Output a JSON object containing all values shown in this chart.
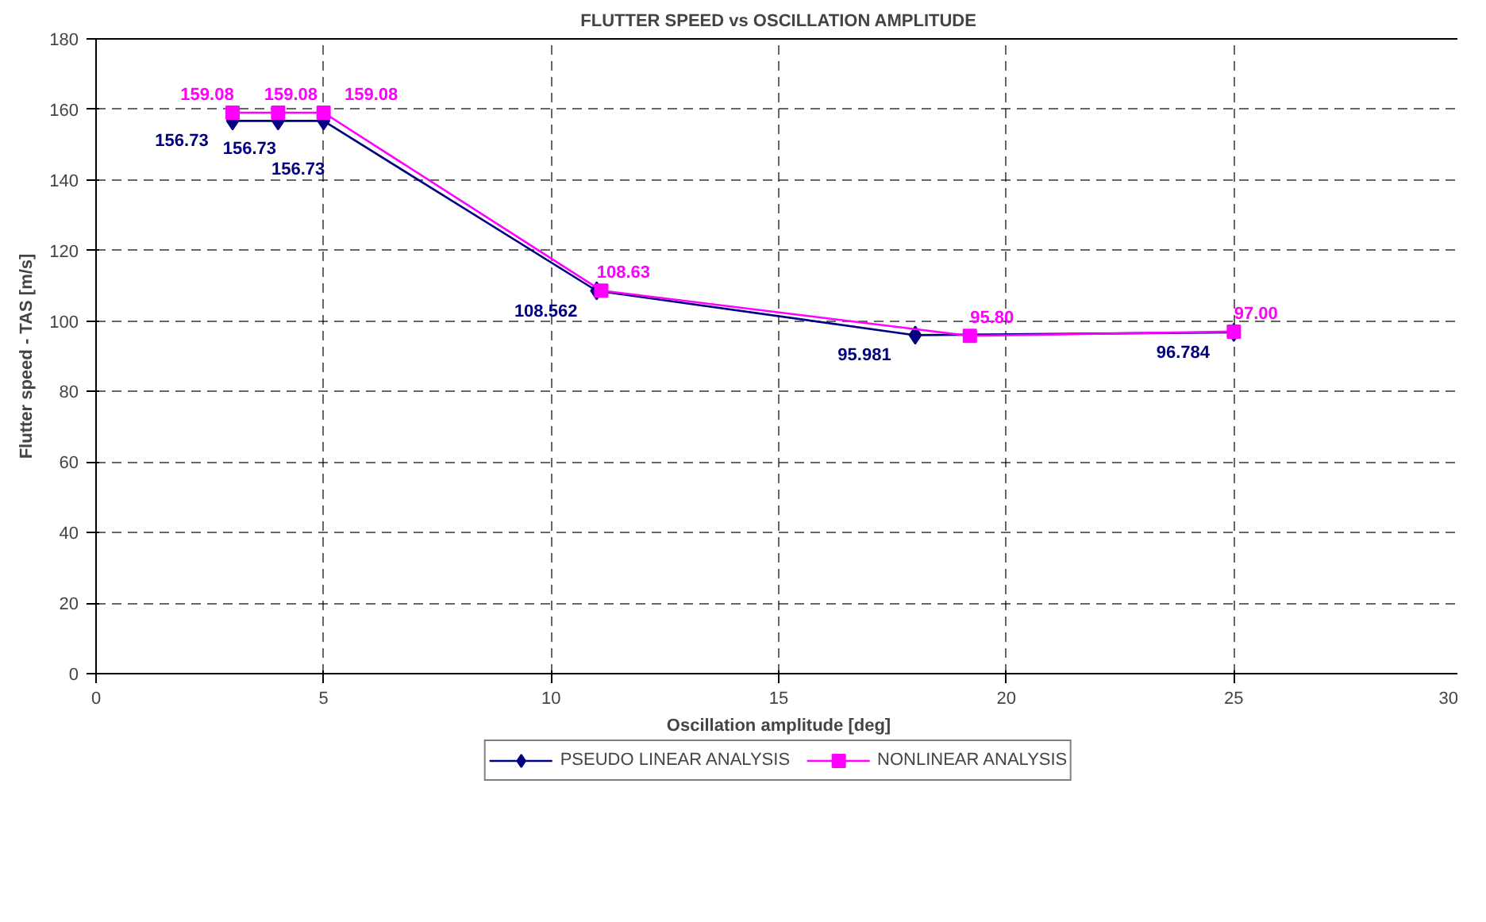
{
  "chart_data": {
    "type": "line",
    "title": "FLUTTER SPEED vs OSCILLATION AMPLITUDE",
    "xlabel": "Oscillation amplitude [deg]",
    "ylabel": "Flutter speed - TAS [m/s]",
    "xlim": [
      0,
      30
    ],
    "xticks": [
      0,
      5,
      10,
      15,
      20,
      25,
      30
    ],
    "ylim": [
      0,
      180
    ],
    "yticks": [
      0,
      20,
      40,
      60,
      80,
      100,
      120,
      140,
      160,
      180
    ],
    "grid": true,
    "legend": "bottom",
    "line_style": "solid",
    "series": [
      {
        "name": "PSEUDO LINEAR ANALYSIS",
        "color": "#000080",
        "marker": "diamond",
        "x": [
          3,
          4,
          5,
          11.0,
          18.0,
          25
        ],
        "values": [
          156.73,
          156.73,
          156.73,
          108.562,
          95.981,
          96.784
        ],
        "value_labels": [
          "156.73",
          "156.73",
          "156.73",
          "108.562",
          "95.981",
          "96.784"
        ]
      },
      {
        "name": "NONLINEAR ANALYSIS",
        "color": "#ff00ff",
        "marker": "square",
        "x": [
          3,
          4,
          5,
          11.1,
          19.2,
          25
        ],
        "values": [
          159.08,
          159.08,
          159.08,
          108.63,
          95.8,
          97.0
        ],
        "value_labels": [
          "159.08",
          "159.08",
          "159.08",
          "108.63",
          "95.80",
          "97.00"
        ]
      }
    ]
  }
}
